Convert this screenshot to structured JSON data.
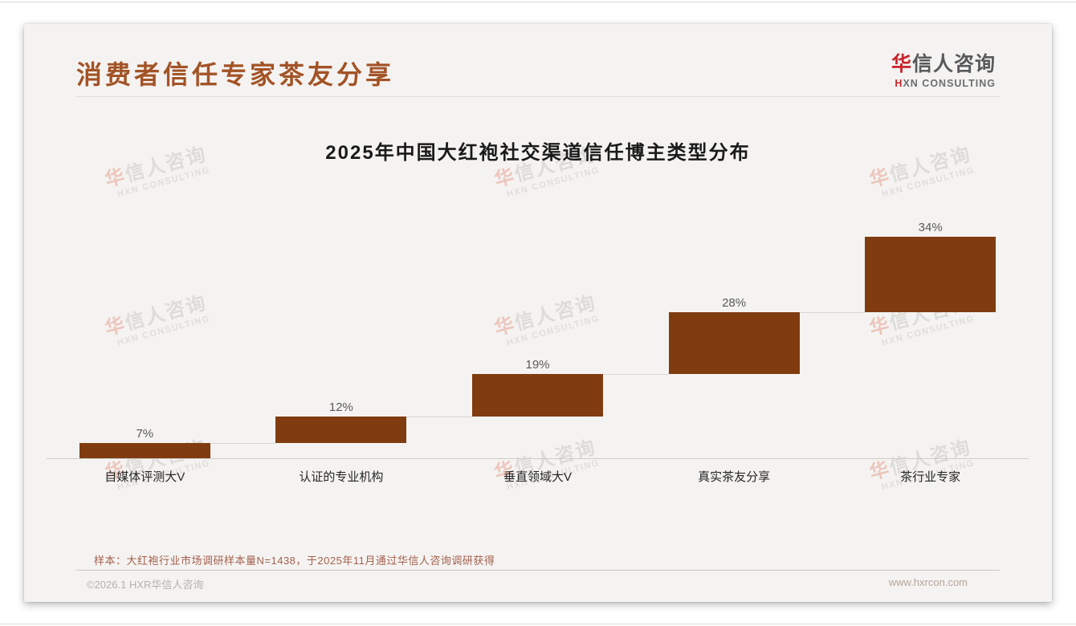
{
  "page": {
    "title": "消费者信任专家茶友分享",
    "logo": {
      "line1_accent": "华",
      "line1_rest": "信人咨询",
      "line2_accent": "H",
      "line2_rest": "XN CONSULTING"
    },
    "watermark": {
      "line1_accent": "华",
      "line1_rest": "信人咨询",
      "line2": "HXN CONSULTING"
    },
    "footnote": "样本：大红袍行业市场调研样本量N=1438，于2025年11月通过华信人咨询调研获得",
    "footer": {
      "copyright": "©2026.1 HXR华信人咨询",
      "website": "www.hxrcon.com"
    }
  },
  "chart_data": {
    "type": "bar",
    "subtype": "waterfall",
    "title": "2025年中国大红袍社交渠道信任博主类型分布",
    "categories": [
      "自媒体评测大V",
      "认证的专业机构",
      "垂直领域大V",
      "真实茶友分享",
      "茶行业专家"
    ],
    "values": [
      7,
      12,
      19,
      28,
      34
    ],
    "value_labels": [
      "7%",
      "12%",
      "19%",
      "28%",
      "34%"
    ],
    "ylim": [
      0,
      100
    ],
    "bar_color": "#803c10",
    "connector_color": "#d9d7d4",
    "axis_line_color": "#cfcdca",
    "value_label_color": "#595959",
    "category_label_color": "#262626",
    "grid": "off",
    "legend": "none"
  },
  "colors": {
    "title_accent": "#a35326",
    "logo_red": "#c9252c",
    "footnote": "#a4604e",
    "card_background": "#f4f3f1"
  }
}
